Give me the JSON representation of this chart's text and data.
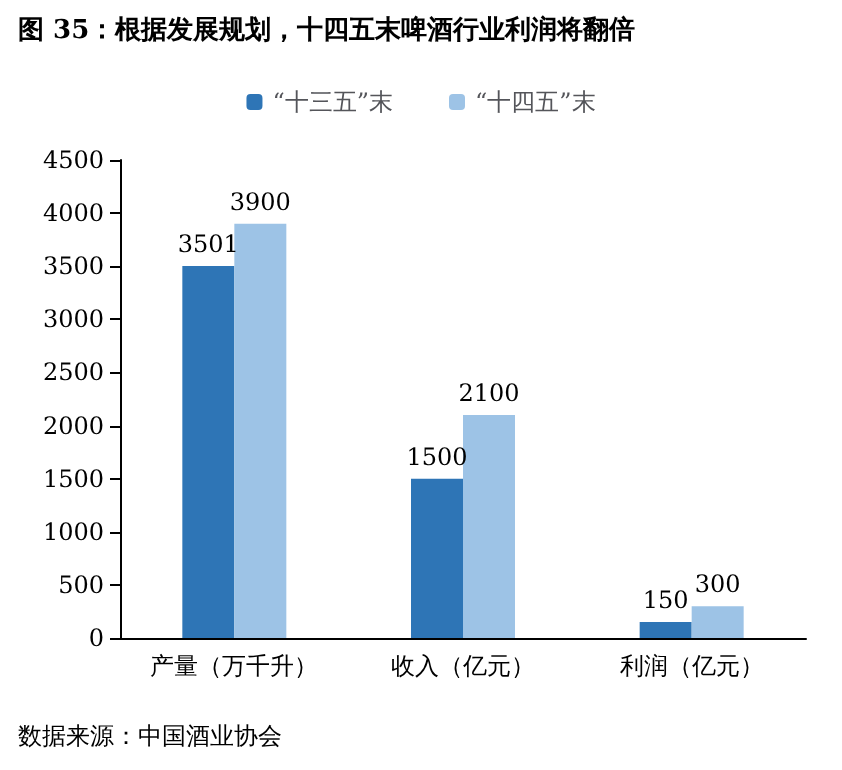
{
  "chart_data": {
    "type": "bar",
    "title": "图 35：根据发展规划，十四五末啤酒行业利润将翻倍",
    "categories": [
      "产量（万千升）",
      "收入（亿元）",
      "利润（亿元）"
    ],
    "series": [
      {
        "name": "“十三五”末",
        "color": "#2e75b6",
        "values": [
          3501,
          1500,
          150
        ]
      },
      {
        "name": "“十四五”末",
        "color": "#9dc3e6",
        "values": [
          3900,
          2100,
          300
        ]
      }
    ],
    "ylim": [
      0,
      4500
    ],
    "yticks": [
      0,
      500,
      1000,
      1500,
      2000,
      2500,
      3000,
      3500,
      4000,
      4500
    ],
    "grid": false,
    "legend": "top",
    "data_labels": true,
    "annotations": [
      "数据来源：中国酒业协会"
    ]
  }
}
